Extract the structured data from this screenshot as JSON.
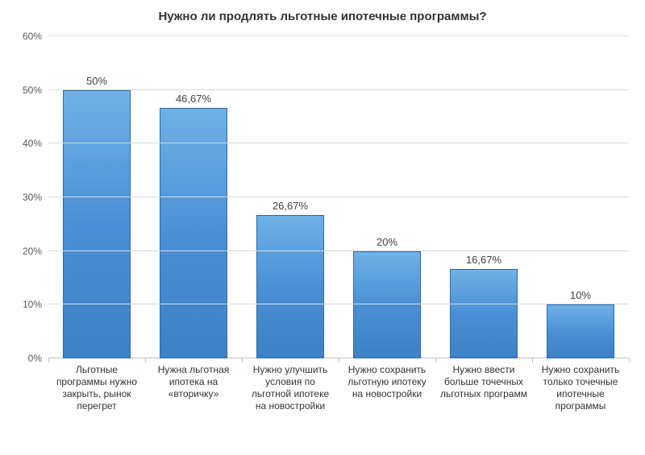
{
  "chart": {
    "type": "bar",
    "title": "Нужно ли продлять льготные ипотечные программы?",
    "title_fontsize": 15,
    "title_fontweight": "bold",
    "title_color": "#333333",
    "background_color": "#ffffff",
    "grid_color": "#d9d9d9",
    "axis_line_color": "#bfbfbf",
    "label_color": "#333333",
    "tick_label_color": "#595959",
    "axis_label_fontsize": 12,
    "value_label_fontsize": 13,
    "ylim": [
      0,
      60
    ],
    "ytick_step": 10,
    "ytick_suffix": "%",
    "bar_width": 0.7,
    "bar_fill_gradient": [
      "#6fb1e6",
      "#4a90d6",
      "#3d81c6"
    ],
    "bar_border_color": "#2f6aa8",
    "categories": [
      "Льготные программы нужно закрыть, рынок перегрет",
      "Нужна льготная ипотека на «вторичку»",
      "Нужно улучшить условия по льготной ипотеке на новостройки",
      "Нужно сохранить льготную ипотеку на новостройки",
      "Нужно ввести больше точечных льготных программ",
      "Нужно сохранить только точечные ипотечные программы"
    ],
    "values": [
      50,
      46.67,
      26.67,
      20,
      16.67,
      10
    ],
    "value_labels": [
      "50%",
      "46,67%",
      "26,67%",
      "20%",
      "16,67%",
      "10%"
    ]
  }
}
